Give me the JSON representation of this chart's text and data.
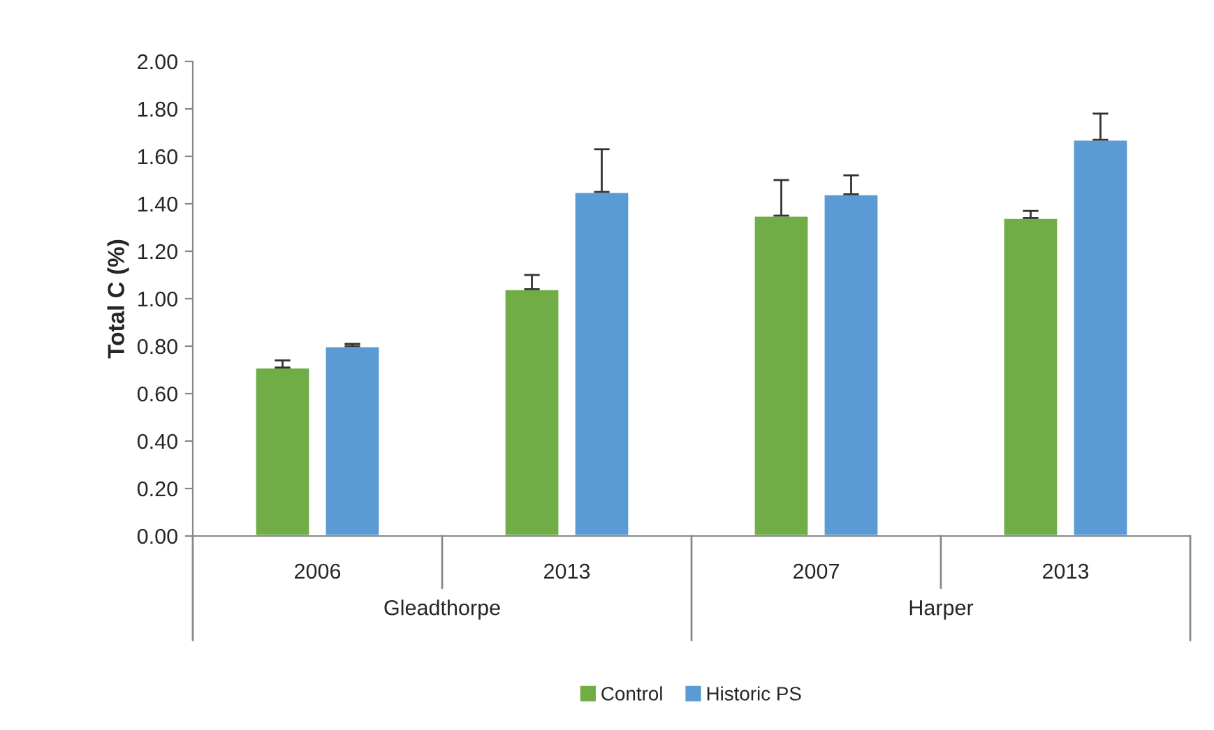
{
  "chart_data": {
    "type": "bar",
    "ylabel": "Total C (%)",
    "categories": [
      "2006",
      "2013",
      "2007",
      "2013"
    ],
    "series": [
      {
        "name": "Control",
        "color": "#70ad47",
        "values": [
          0.71,
          1.04,
          1.35,
          1.34
        ],
        "errors": [
          [
            0.71,
            0.74
          ],
          [
            1.04,
            1.1
          ],
          [
            1.35,
            1.5
          ],
          [
            1.34,
            1.37
          ]
        ]
      },
      {
        "name": "Historic PS",
        "color": "#5b9bd5",
        "values": [
          0.8,
          1.45,
          1.44,
          1.67
        ],
        "errors": [
          [
            0.8,
            0.81
          ],
          [
            1.45,
            1.63
          ],
          [
            1.44,
            1.52
          ],
          [
            1.67,
            1.78
          ]
        ]
      }
    ],
    "annotations": [
      "Gleadthorpe",
      "Harper"
    ],
    "ylim": [
      0,
      2
    ],
    "yticks": [
      {
        "value": 0,
        "label": "0.00"
      },
      {
        "value": 0.2,
        "label": "0.20"
      },
      {
        "value": 0.4,
        "label": "0.40"
      },
      {
        "value": 0.6,
        "label": "0.60"
      },
      {
        "value": 0.8,
        "label": "0.80"
      },
      {
        "value": 1.0,
        "label": "1.00"
      },
      {
        "value": 1.2,
        "label": "1.20"
      },
      {
        "value": 1.4,
        "label": "1.40"
      },
      {
        "value": 1.6,
        "label": "1.60"
      },
      {
        "value": 1.8,
        "label": "1.80"
      },
      {
        "value": 2.0,
        "label": "2.00"
      }
    ],
    "grid": false,
    "legend": "bottom"
  }
}
